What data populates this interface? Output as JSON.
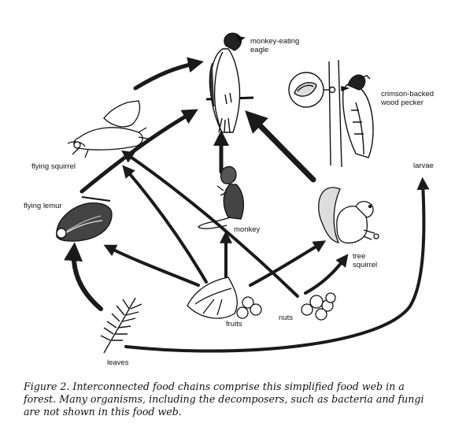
{
  "organisms": {
    "eagle": "monkey-eating\neagle",
    "woodpecker": "crimson-backed\nwood pecker",
    "flying_squirrel": "flying squirrel",
    "larvae": "larvae",
    "flying_lemur": "flying lemur",
    "monkey": "monkey",
    "tree_squirrel": "tree\nsquirrel",
    "nuts": "nuts",
    "fruits": "fruits",
    "leaves": "leaves"
  },
  "caption": "Figure 2.  Interconnected food chains comprise this simplified food web in a forest. Many organisms, including the decomposers, such as bacteria and fungi are not shown in this food web."
}
